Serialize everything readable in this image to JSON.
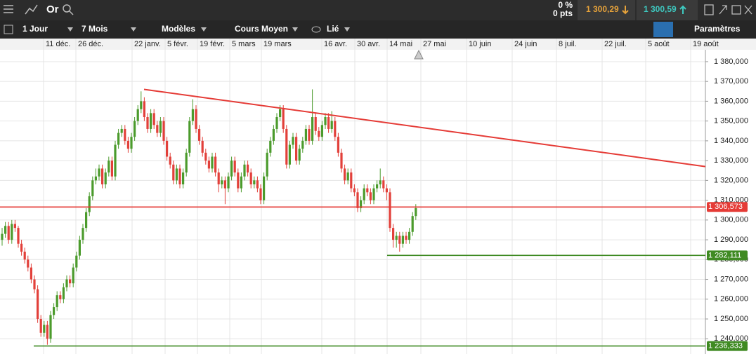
{
  "toolbar": {
    "instrument": "Or",
    "change_pct": "0 %",
    "change_pts": "0 pts",
    "bid": "1 300,29",
    "ask": "1 300,59",
    "interval": "1 Jour",
    "range": "7 Mois",
    "models": "Modèles",
    "price_type": "Cours Moyen",
    "link": "Lié",
    "settings": "Paramètres"
  },
  "chart_data": {
    "type": "candlestick",
    "x_labels": [
      "11 déc.",
      "26 déc.",
      "22 janv.",
      "5 févr.",
      "19 févr.",
      "5 mars",
      "19 mars",
      "16 avr.",
      "30 avr.",
      "14 mai",
      "27 mai",
      "10 juin",
      "24 juin",
      "8 juil.",
      "22 juil.",
      "5 août",
      "19 août"
    ],
    "ylim": [
      1232.3,
      1386
    ],
    "yticks": [
      {
        "value": 1380,
        "label": "1 380,000"
      },
      {
        "value": 1370,
        "label": "1 370,000"
      },
      {
        "value": 1360,
        "label": "1 360,000"
      },
      {
        "value": 1350,
        "label": "1 350,000"
      },
      {
        "value": 1340,
        "label": "1 340,000"
      },
      {
        "value": 1330,
        "label": "1 330,000"
      },
      {
        "value": 1320,
        "label": "1 320,000"
      },
      {
        "value": 1310,
        "label": "1 310,000"
      },
      {
        "value": 1300,
        "label": "1 300,000"
      },
      {
        "value": 1290,
        "label": "1 290,000"
      },
      {
        "value": 1280,
        "label": "1 280,000"
      },
      {
        "value": 1270,
        "label": "1 270,000"
      },
      {
        "value": 1260,
        "label": "1 260,000"
      },
      {
        "value": 1250,
        "label": "1 250,000"
      },
      {
        "value": 1240,
        "label": "1 240,000"
      }
    ],
    "grid": true,
    "up_color": "#4b9b2c",
    "down_color": "#e2403a",
    "candles": [
      [
        1290,
        1296,
        1287,
        1293
      ],
      [
        1293,
        1299,
        1291,
        1297
      ],
      [
        1297,
        1299,
        1288,
        1290
      ],
      [
        1290,
        1300,
        1288,
        1298
      ],
      [
        1298,
        1300,
        1294,
        1296
      ],
      [
        1296,
        1297,
        1286,
        1288
      ],
      [
        1288,
        1290,
        1282,
        1284
      ],
      [
        1284,
        1286,
        1278,
        1280
      ],
      [
        1280,
        1282,
        1274,
        1276
      ],
      [
        1276,
        1278,
        1268,
        1270
      ],
      [
        1270,
        1272,
        1263,
        1265
      ],
      [
        1265,
        1267,
        1248,
        1250
      ],
      [
        1250,
        1252,
        1241,
        1243
      ],
      [
        1243,
        1249,
        1241,
        1247
      ],
      [
        1247,
        1249,
        1237,
        1240
      ],
      [
        1240,
        1254,
        1238,
        1252
      ],
      [
        1252,
        1258,
        1250,
        1256
      ],
      [
        1256,
        1264,
        1254,
        1262
      ],
      [
        1262,
        1264,
        1258,
        1260
      ],
      [
        1260,
        1268,
        1258,
        1266
      ],
      [
        1266,
        1272,
        1264,
        1270
      ],
      [
        1270,
        1272,
        1266,
        1268
      ],
      [
        1268,
        1278,
        1266,
        1276
      ],
      [
        1276,
        1284,
        1274,
        1282
      ],
      [
        1282,
        1292,
        1280,
        1290
      ],
      [
        1290,
        1298,
        1288,
        1296
      ],
      [
        1296,
        1306,
        1294,
        1304
      ],
      [
        1304,
        1314,
        1302,
        1312
      ],
      [
        1312,
        1322,
        1310,
        1320
      ],
      [
        1320,
        1326,
        1318,
        1322
      ],
      [
        1322,
        1328,
        1320,
        1326
      ],
      [
        1326,
        1328,
        1316,
        1318
      ],
      [
        1318,
        1326,
        1316,
        1324
      ],
      [
        1324,
        1332,
        1322,
        1330
      ],
      [
        1330,
        1332,
        1320,
        1322
      ],
      [
        1322,
        1340,
        1320,
        1338
      ],
      [
        1338,
        1346,
        1336,
        1344
      ],
      [
        1344,
        1348,
        1342,
        1346
      ],
      [
        1346,
        1348,
        1338,
        1340
      ],
      [
        1340,
        1342,
        1334,
        1336
      ],
      [
        1336,
        1344,
        1334,
        1342
      ],
      [
        1342,
        1352,
        1340,
        1350
      ],
      [
        1350,
        1358,
        1348,
        1356
      ],
      [
        1356,
        1365,
        1354,
        1360
      ],
      [
        1360,
        1362,
        1350,
        1352
      ],
      [
        1352,
        1354,
        1344,
        1346
      ],
      [
        1346,
        1356,
        1344,
        1354
      ],
      [
        1354,
        1356,
        1346,
        1348
      ],
      [
        1348,
        1350,
        1342,
        1344
      ],
      [
        1344,
        1352,
        1342,
        1350
      ],
      [
        1350,
        1352,
        1338,
        1340
      ],
      [
        1340,
        1342,
        1330,
        1332
      ],
      [
        1332,
        1334,
        1326,
        1328
      ],
      [
        1328,
        1330,
        1318,
        1320
      ],
      [
        1320,
        1328,
        1318,
        1326
      ],
      [
        1326,
        1328,
        1316,
        1318
      ],
      [
        1318,
        1326,
        1316,
        1324
      ],
      [
        1324,
        1336,
        1322,
        1334
      ],
      [
        1334,
        1352,
        1332,
        1350
      ],
      [
        1350,
        1361,
        1348,
        1356
      ],
      [
        1356,
        1358,
        1344,
        1346
      ],
      [
        1346,
        1348,
        1338,
        1340
      ],
      [
        1340,
        1342,
        1332,
        1334
      ],
      [
        1334,
        1336,
        1328,
        1330
      ],
      [
        1330,
        1332,
        1324,
        1326
      ],
      [
        1326,
        1334,
        1324,
        1332
      ],
      [
        1332,
        1334,
        1322,
        1324
      ],
      [
        1324,
        1326,
        1314,
        1318
      ],
      [
        1318,
        1322,
        1316,
        1320
      ],
      [
        1320,
        1322,
        1308,
        1316
      ],
      [
        1316,
        1324,
        1314,
        1322
      ],
      [
        1322,
        1332,
        1320,
        1330
      ],
      [
        1330,
        1332,
        1322,
        1324
      ],
      [
        1324,
        1326,
        1314,
        1316
      ],
      [
        1316,
        1324,
        1314,
        1322
      ],
      [
        1322,
        1330,
        1320,
        1328
      ],
      [
        1328,
        1330,
        1322,
        1324
      ],
      [
        1324,
        1326,
        1316,
        1318
      ],
      [
        1318,
        1322,
        1316,
        1320
      ],
      [
        1320,
        1322,
        1314,
        1316
      ],
      [
        1316,
        1318,
        1308,
        1310
      ],
      [
        1310,
        1324,
        1308,
        1322
      ],
      [
        1322,
        1336,
        1320,
        1334
      ],
      [
        1334,
        1342,
        1332,
        1340
      ],
      [
        1340,
        1348,
        1338,
        1346
      ],
      [
        1346,
        1354,
        1344,
        1352
      ],
      [
        1352,
        1358,
        1350,
        1356
      ],
      [
        1356,
        1358,
        1344,
        1346
      ],
      [
        1346,
        1348,
        1326,
        1328
      ],
      [
        1328,
        1340,
        1326,
        1338
      ],
      [
        1338,
        1344,
        1336,
        1342
      ],
      [
        1342,
        1344,
        1328,
        1330
      ],
      [
        1330,
        1338,
        1328,
        1336
      ],
      [
        1336,
        1342,
        1334,
        1340
      ],
      [
        1340,
        1348,
        1338,
        1346
      ],
      [
        1346,
        1348,
        1338,
        1340
      ],
      [
        1340,
        1366,
        1338,
        1352
      ],
      [
        1352,
        1354,
        1343,
        1345
      ],
      [
        1345,
        1347,
        1340,
        1342
      ],
      [
        1342,
        1350,
        1340,
        1348
      ],
      [
        1348,
        1354,
        1346,
        1352
      ],
      [
        1352,
        1354,
        1344,
        1346
      ],
      [
        1346,
        1355,
        1344,
        1350
      ],
      [
        1350,
        1352,
        1340,
        1342
      ],
      [
        1342,
        1344,
        1332,
        1334
      ],
      [
        1334,
        1336,
        1324,
        1326
      ],
      [
        1326,
        1328,
        1318,
        1320
      ],
      [
        1320,
        1326,
        1318,
        1324
      ],
      [
        1324,
        1326,
        1314,
        1316
      ],
      [
        1316,
        1318,
        1312,
        1314
      ],
      [
        1314,
        1316,
        1304,
        1306
      ],
      [
        1306,
        1312,
        1304,
        1310
      ],
      [
        1310,
        1318,
        1308,
        1316
      ],
      [
        1316,
        1318,
        1312,
        1314
      ],
      [
        1314,
        1316,
        1308,
        1310
      ],
      [
        1310,
        1318,
        1308,
        1316
      ],
      [
        1316,
        1320,
        1314,
        1318
      ],
      [
        1318,
        1326,
        1316,
        1320
      ],
      [
        1320,
        1322,
        1314,
        1316
      ],
      [
        1316,
        1318,
        1310,
        1314
      ],
      [
        1314,
        1316,
        1294,
        1296
      ],
      [
        1296,
        1298,
        1286,
        1290
      ],
      [
        1290,
        1294,
        1286,
        1292
      ],
      [
        1292,
        1294,
        1284,
        1288
      ],
      [
        1288,
        1294,
        1286,
        1292
      ],
      [
        1292,
        1294,
        1288,
        1290
      ],
      [
        1290,
        1296,
        1288,
        1294
      ],
      [
        1294,
        1304,
        1292,
        1302
      ],
      [
        1302,
        1308,
        1300,
        1306
      ]
    ],
    "trendline": {
      "from": 1366,
      "to": 1327,
      "color": "#e53b36"
    },
    "levels": [
      {
        "value": 1306.573,
        "label": "1 306,573",
        "color": "#e53b36"
      },
      {
        "value": 1282.111,
        "label": "1 282,111",
        "color": "#3f8a22"
      },
      {
        "value": 1236.333,
        "label": "1 236,333",
        "color": "#3f8a22"
      }
    ]
  }
}
